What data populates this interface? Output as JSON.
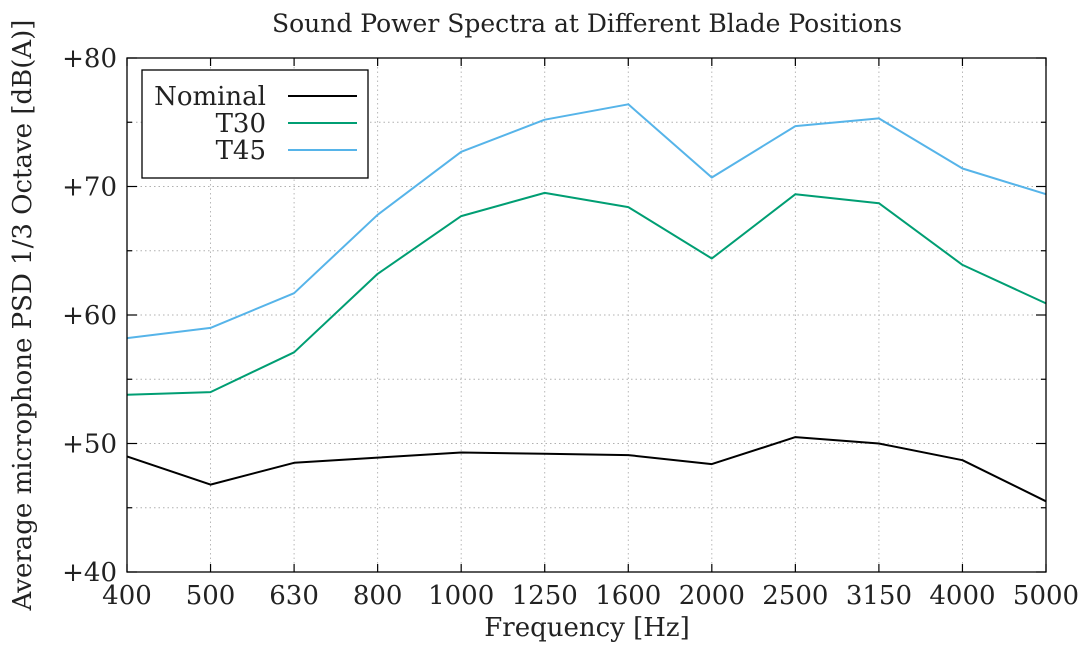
{
  "chart_data": {
    "type": "line",
    "title": "Sound Power Spectra at Different Blade Positions",
    "xlabel": "Frequency [Hz]",
    "ylabel": "Average microphone PSD 1/3 Octave [dB(A)]",
    "categories": [
      "400",
      "500",
      "630",
      "800",
      "1000",
      "1250",
      "1600",
      "2000",
      "2500",
      "3150",
      "4000",
      "5000"
    ],
    "ylim": [
      40,
      80
    ],
    "yticks": [
      40,
      50,
      60,
      70,
      80
    ],
    "ytick_labels": [
      "+40",
      "+50",
      "+60",
      "+70",
      "+80"
    ],
    "grid": true,
    "legend_position": "top-left",
    "series": [
      {
        "name": "Nominal",
        "color": "#000000",
        "values": [
          49.0,
          46.8,
          48.5,
          48.9,
          49.3,
          49.2,
          49.1,
          48.4,
          50.5,
          50.0,
          48.7,
          45.5
        ]
      },
      {
        "name": "T30",
        "color": "#009e73",
        "values": [
          53.8,
          54.0,
          57.1,
          63.2,
          67.7,
          69.5,
          68.4,
          64.4,
          69.4,
          68.7,
          63.9,
          60.9
        ]
      },
      {
        "name": "T45",
        "color": "#56b4e9",
        "values": [
          58.2,
          59.0,
          61.7,
          67.8,
          72.7,
          75.2,
          76.4,
          70.7,
          74.7,
          75.3,
          71.4,
          69.4
        ]
      }
    ]
  }
}
